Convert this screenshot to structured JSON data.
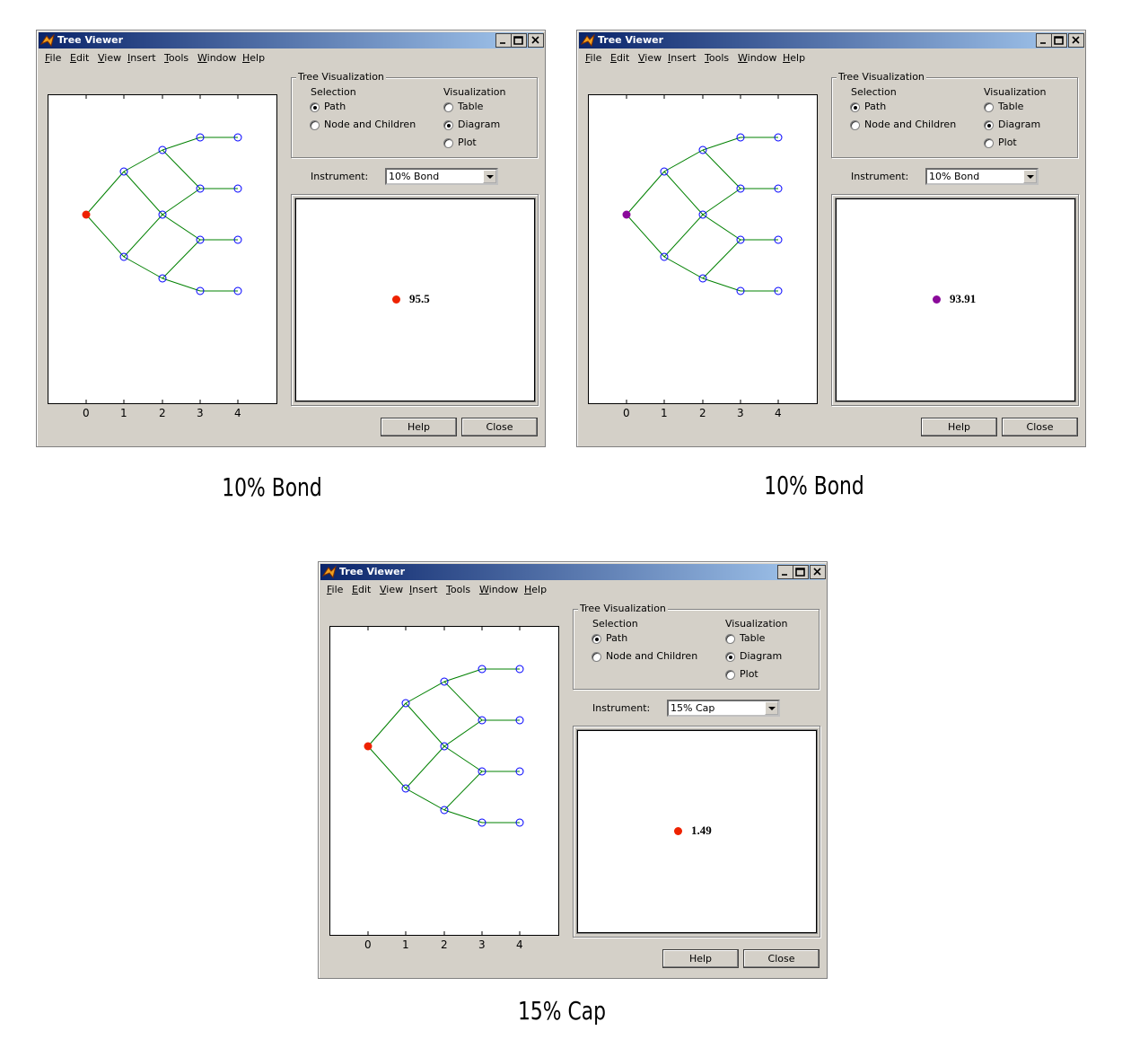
{
  "windows": [
    {
      "title": "Tree Viewer",
      "menu": [
        "File",
        "Edit",
        "View",
        "Insert",
        "Tools",
        "Window",
        "Help"
      ],
      "group_title": "Tree Visualization",
      "selection_label": "Selection",
      "selection_options": [
        "Path",
        "Node and Children"
      ],
      "visualization_label": "Visualization",
      "visualization_options": [
        "Table",
        "Diagram",
        "Plot"
      ],
      "instrument_label": "Instrument:",
      "instrument": "10% Bond",
      "x_ticks": [
        0,
        1,
        2,
        3,
        4
      ],
      "value": 95.5,
      "marker_color": "#ee2200",
      "buttons": [
        "Help",
        "Close"
      ],
      "caption": "10% Bond"
    },
    {
      "title": "Tree Viewer",
      "menu": [
        "File",
        "Edit",
        "View",
        "Insert",
        "Tools",
        "Window",
        "Help"
      ],
      "group_title": "Tree Visualization",
      "selection_label": "Selection",
      "selection_options": [
        "Path",
        "Node and Children"
      ],
      "visualization_label": "Visualization",
      "visualization_options": [
        "Table",
        "Diagram",
        "Plot"
      ],
      "instrument_label": "Instrument:",
      "instrument": "10% Bond",
      "x_ticks": [
        0,
        1,
        2,
        3,
        4
      ],
      "value": 93.91,
      "marker_color": "#8a0a9a",
      "buttons": [
        "Help",
        "Close"
      ],
      "caption": "10% Bond"
    },
    {
      "title": "Tree Viewer",
      "menu": [
        "File",
        "Edit",
        "View",
        "Insert",
        "Tools",
        "Window",
        "Help"
      ],
      "group_title": "Tree Visualization",
      "selection_label": "Selection",
      "selection_options": [
        "Path",
        "Node and Children"
      ],
      "visualization_label": "Visualization",
      "visualization_options": [
        "Table",
        "Diagram",
        "Plot"
      ],
      "instrument_label": "Instrument:",
      "instrument": "15% Cap",
      "x_ticks": [
        0,
        1,
        2,
        3,
        4
      ],
      "value": 1.49,
      "marker_color": "#ee2200",
      "buttons": [
        "Help",
        "Close"
      ],
      "caption": "15% Cap"
    }
  ]
}
